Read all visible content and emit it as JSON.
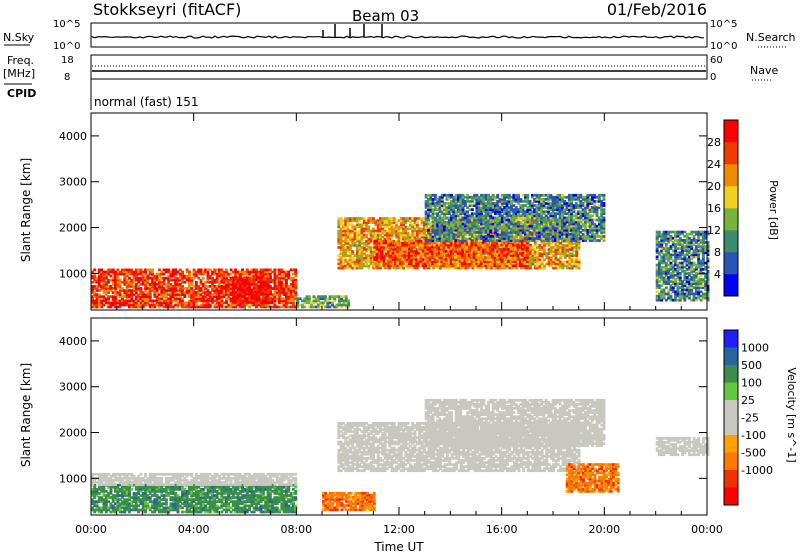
{
  "header": {
    "station": "Stokkseyri (fitACF)",
    "beam": "Beam 03",
    "date": "01/Feb/2016"
  },
  "status_panels": {
    "nsky": {
      "label": "N.Sky",
      "left_ticks": [
        "10^5",
        "10^0"
      ]
    },
    "nsearch": {
      "label": "N.Search",
      "right_ticks": [
        "10^5",
        "10^0"
      ]
    },
    "freq": {
      "label_line1": "Freq.",
      "label_line2": "[MHz]",
      "left_ticks": [
        "18",
        "8"
      ]
    },
    "nave": {
      "label": "Nave",
      "right_ticks": [
        "60",
        "0"
      ]
    },
    "cpid": {
      "label": "CPID",
      "mode_text": "normal (fast) 151"
    }
  },
  "colors": {
    "power_scale": [
      "#0000ff",
      "#2a55b4",
      "#3c8c6e",
      "#78b43c",
      "#f0d21e",
      "#f08c00",
      "#f03c00",
      "#ff0000"
    ],
    "velocity_scale": [
      "#ff0000",
      "#f03200",
      "#ff7800",
      "#ffa000",
      "#c8c8c0",
      "#c8c8c0",
      "#64c83c",
      "#3c8c4a",
      "#2864a0",
      "#1e1eff"
    ],
    "ground_scatter": "#c8c8c0"
  },
  "chart_data": [
    {
      "type": "heatmap",
      "panel": "power",
      "xlabel": "Time UT",
      "ylabel": "Slant Range [km]",
      "x_range_hours": [
        0,
        24
      ],
      "ylim": [
        200,
        4500
      ],
      "x_ticks": [
        "00:00",
        "04:00",
        "08:00",
        "12:00",
        "16:00",
        "20:00",
        "00:00"
      ],
      "y_ticks": [
        "1000",
        "2000",
        "3000",
        "4000"
      ],
      "colorbar": {
        "label": "Power [dB]",
        "ticks": [
          "4",
          "8",
          "12",
          "16",
          "20",
          "24",
          "28"
        ]
      },
      "regions": [
        {
          "t0": 0.0,
          "t1": 8.0,
          "r0": 250,
          "r1": 1100,
          "level": 0.85
        },
        {
          "t0": 5.5,
          "t1": 7.0,
          "r0": 350,
          "r1": 900,
          "level": 1.0
        },
        {
          "t0": 8.0,
          "t1": 10.0,
          "r0": 250,
          "r1": 500,
          "level": 0.4
        },
        {
          "t0": 9.6,
          "t1": 19.0,
          "r0": 1100,
          "r1": 2200,
          "level": 0.65
        },
        {
          "t0": 11.0,
          "t1": 17.0,
          "r0": 1150,
          "r1": 1700,
          "level": 0.8
        },
        {
          "t0": 13.0,
          "t1": 20.0,
          "r0": 1700,
          "r1": 2700,
          "level": 0.3
        },
        {
          "t0": 22.0,
          "t1": 24.0,
          "r0": 400,
          "r1": 1900,
          "level": 0.3
        }
      ]
    },
    {
      "type": "heatmap",
      "panel": "velocity",
      "xlabel": "Time UT",
      "ylabel": "Slant Range [km]",
      "x_range_hours": [
        0,
        24
      ],
      "ylim": [
        200,
        4500
      ],
      "x_ticks": [
        "00:00",
        "04:00",
        "08:00",
        "12:00",
        "16:00",
        "20:00",
        "00:00"
      ],
      "y_ticks": [
        "1000",
        "2000",
        "3000",
        "4000"
      ],
      "colorbar": {
        "label": "Velocity [m s^-1]",
        "ticks": [
          "1000",
          "500",
          "100",
          "25",
          "-25",
          "-100",
          "-500",
          "-1000"
        ]
      },
      "regions": [
        {
          "t0": 0.0,
          "t1": 8.0,
          "r0": 250,
          "r1": 850,
          "kind": "positive_green"
        },
        {
          "t0": 0.0,
          "t1": 8.0,
          "r0": 850,
          "r1": 1100,
          "kind": "ground"
        },
        {
          "t0": 9.6,
          "t1": 19.0,
          "r0": 1150,
          "r1": 2200,
          "kind": "ground"
        },
        {
          "t0": 13.0,
          "t1": 20.0,
          "r0": 1700,
          "r1": 2700,
          "kind": "ground"
        },
        {
          "t0": 9.0,
          "t1": 11.0,
          "r0": 300,
          "r1": 700,
          "kind": "negative_orange"
        },
        {
          "t0": 18.5,
          "t1": 20.5,
          "r0": 700,
          "r1": 1300,
          "kind": "negative_orange"
        },
        {
          "t0": 22.0,
          "t1": 24.0,
          "r0": 1500,
          "r1": 1900,
          "kind": "ground"
        }
      ]
    }
  ]
}
